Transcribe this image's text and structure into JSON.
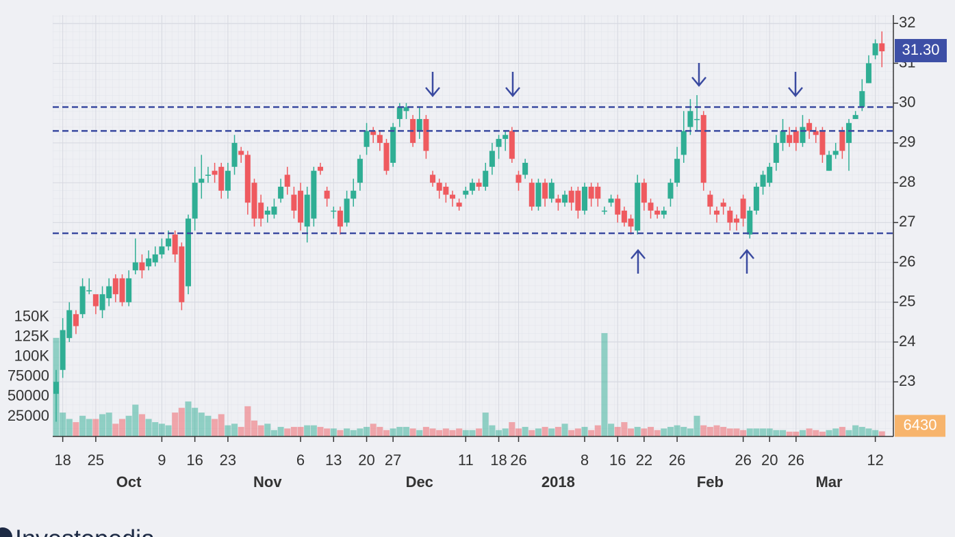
{
  "chart_data": {
    "type": "candlestick",
    "categories": [
      null,
      "18",
      null,
      null,
      null,
      null,
      "25",
      null,
      null,
      null,
      null,
      null,
      null,
      null,
      null,
      null,
      "9",
      null,
      null,
      null,
      null,
      "16",
      null,
      null,
      null,
      null,
      "23",
      null,
      null,
      null,
      null,
      null,
      null,
      null,
      null,
      null,
      null,
      "6",
      null,
      null,
      null,
      null,
      "13",
      null,
      null,
      null,
      null,
      "20",
      null,
      null,
      null,
      "27",
      null,
      null,
      null,
      null,
      null,
      null,
      null,
      null,
      null,
      null,
      "11",
      null,
      null,
      null,
      null,
      "18",
      null,
      null,
      "26",
      null,
      null,
      null,
      null,
      null,
      null,
      null,
      null,
      null,
      "8",
      null,
      null,
      null,
      null,
      "16",
      null,
      null,
      null,
      "22",
      null,
      null,
      null,
      null,
      "26",
      null,
      null,
      null,
      null,
      null,
      null,
      null,
      null,
      null,
      "26",
      null,
      null,
      null,
      "20",
      null,
      null,
      null,
      "26",
      null,
      null,
      null,
      null,
      null,
      null,
      null,
      null,
      null,
      null,
      null,
      "12",
      null
    ],
    "month_labels": [
      null,
      null,
      null,
      null,
      null,
      null,
      null,
      null,
      null,
      null,
      null,
      "Oct",
      null,
      null,
      null,
      null,
      null,
      null,
      null,
      null,
      null,
      null,
      null,
      null,
      null,
      null,
      null,
      null,
      null,
      null,
      null,
      null,
      "Nov",
      null,
      null,
      null,
      null,
      null,
      null,
      null,
      null,
      null,
      null,
      null,
      null,
      null,
      null,
      null,
      null,
      null,
      null,
      null,
      null,
      null,
      null,
      "Dec",
      null,
      null,
      null,
      null,
      null,
      null,
      null,
      null,
      null,
      null,
      null,
      null,
      null,
      null,
      null,
      null,
      null,
      null,
      null,
      null,
      "2018",
      null,
      null,
      null,
      null,
      null,
      null,
      null,
      null,
      null,
      null,
      null,
      null,
      null,
      null,
      null,
      null,
      null,
      null,
      null,
      null,
      null,
      null,
      "Feb",
      null,
      null,
      null,
      null,
      null,
      null,
      null,
      null,
      null,
      null,
      null,
      null,
      null,
      null,
      null,
      null,
      null,
      "Mar",
      null,
      null,
      null,
      null,
      null,
      null,
      null,
      null
    ],
    "open": [
      22.7,
      23.3,
      24.1,
      24.7,
      24.7,
      25.3,
      25.2,
      24.8,
      25.1,
      25.6,
      25.6,
      25.0,
      25.8,
      26.0,
      25.9,
      26.0,
      26.2,
      26.4,
      26.7,
      26.4,
      25.4,
      27.1,
      28.0,
      28.2,
      28.3,
      28.4,
      27.8,
      28.4,
      28.8,
      28.7,
      28.0,
      27.5,
      27.2,
      27.2,
      27.6,
      28.2,
      27.7,
      27.8,
      26.9,
      27.1,
      28.4,
      27.8,
      27.3,
      27.3,
      27.0,
      27.6,
      28.0,
      28.9,
      29.3,
      29.2,
      29.0,
      28.5,
      29.6,
      29.8,
      29.6,
      29.3,
      29.6,
      28.2,
      28.0,
      27.9,
      27.7,
      27.5,
      27.7,
      27.8,
      28.0,
      27.9,
      28.4,
      28.9,
      29.1,
      29.3,
      28.2,
      28.2,
      28.0,
      27.4,
      28.0,
      27.6,
      27.6,
      27.5,
      27.8,
      27.8,
      27.3,
      27.9,
      27.9,
      27.3,
      27.5,
      27.6,
      27.3,
      27.1,
      26.8,
      28.0,
      27.5,
      27.3,
      27.2,
      27.6,
      28.0,
      28.7,
      29.4,
      29.6,
      29.7,
      27.7,
      27.3,
      27.5,
      27.3,
      27.1,
      27.6,
      26.7,
      27.3,
      27.9,
      28.0,
      28.5,
      29.0,
      29.2,
      29.3,
      29.0,
      29.5,
      29.3,
      29.3,
      28.3,
      28.7,
      29.3,
      29.0,
      29.6,
      29.9,
      30.5,
      31.2,
      31.5
    ],
    "high": [
      23.3,
      24.6,
      25.0,
      24.8,
      25.6,
      25.6,
      25.1,
      25.4,
      25.6,
      25.7,
      25.7,
      25.8,
      26.6,
      26.2,
      26.3,
      26.4,
      26.6,
      26.8,
      26.8,
      26.5,
      27.2,
      28.4,
      28.7,
      28.4,
      28.5,
      28.5,
      28.5,
      29.2,
      28.9,
      28.8,
      28.1,
      27.7,
      27.4,
      27.6,
      28.1,
      28.4,
      27.9,
      28.0,
      27.9,
      28.4,
      28.5,
      27.9,
      27.4,
      27.4,
      27.8,
      28.1,
      28.7,
      29.5,
      29.4,
      29.3,
      29.1,
      29.5,
      30.0,
      30.0,
      29.7,
      29.9,
      29.7,
      28.3,
      28.1,
      28.0,
      27.8,
      27.6,
      27.9,
      28.1,
      28.1,
      28.5,
      29.0,
      29.2,
      29.3,
      29.4,
      28.3,
      28.6,
      28.1,
      28.1,
      28.1,
      28.1,
      27.7,
      27.8,
      27.9,
      27.9,
      28.0,
      28.0,
      28.0,
      27.4,
      27.7,
      27.7,
      27.4,
      27.2,
      28.2,
      28.1,
      27.6,
      27.4,
      27.4,
      28.1,
      28.9,
      29.8,
      30.1,
      30.2,
      29.8,
      27.8,
      27.4,
      27.6,
      27.4,
      27.2,
      27.7,
      27.4,
      28.0,
      28.3,
      28.5,
      29.2,
      29.6,
      29.4,
      29.4,
      29.7,
      29.6,
      29.4,
      29.4,
      28.8,
      29.0,
      29.4,
      29.6,
      29.8,
      30.6,
      31.2,
      31.6,
      31.8
    ],
    "low": [
      22.0,
      23.1,
      24.0,
      24.2,
      24.6,
      25.2,
      24.7,
      24.6,
      24.9,
      25.0,
      24.9,
      24.9,
      25.7,
      25.6,
      25.8,
      25.9,
      26.1,
      26.3,
      26.0,
      24.8,
      25.2,
      26.8,
      27.6,
      28.0,
      28.0,
      27.6,
      27.6,
      28.2,
      28.5,
      27.2,
      26.9,
      26.9,
      27.0,
      27.1,
      27.5,
      27.7,
      27.1,
      26.8,
      26.5,
      26.9,
      28.2,
      27.4,
      27.1,
      26.7,
      26.9,
      27.4,
      27.8,
      28.7,
      29.0,
      28.8,
      28.2,
      28.4,
      29.4,
      29.6,
      28.9,
      29.1,
      28.6,
      27.9,
      27.6,
      27.5,
      27.4,
      27.3,
      27.6,
      27.7,
      27.8,
      27.8,
      28.2,
      28.6,
      28.8,
      28.5,
      27.8,
      28.1,
      27.3,
      27.3,
      27.4,
      27.5,
      27.3,
      27.4,
      27.3,
      27.1,
      27.2,
      27.4,
      27.4,
      27.2,
      27.4,
      27.0,
      26.9,
      26.7,
      26.7,
      27.3,
      27.1,
      27.1,
      27.1,
      27.4,
      27.9,
      28.5,
      29.2,
      29.3,
      27.8,
      27.2,
      27.0,
      27.2,
      26.8,
      26.8,
      26.9,
      26.6,
      27.2,
      27.7,
      27.9,
      28.3,
      28.8,
      28.9,
      28.8,
      28.9,
      29.1,
      29.0,
      28.5,
      28.3,
      28.6,
      28.6,
      28.3,
      29.6,
      29.8,
      30.5,
      31.1,
      30.9
    ],
    "close": [
      23.0,
      24.3,
      24.8,
      24.4,
      25.4,
      25.3,
      24.9,
      25.2,
      25.4,
      25.2,
      25.0,
      25.6,
      26.0,
      25.8,
      26.1,
      26.2,
      26.4,
      26.6,
      26.2,
      25.0,
      27.1,
      28.0,
      28.1,
      28.2,
      28.2,
      27.8,
      28.3,
      29.0,
      28.7,
      27.5,
      27.1,
      27.1,
      27.3,
      27.4,
      27.9,
      27.9,
      27.3,
      27.0,
      27.7,
      28.3,
      28.3,
      27.6,
      27.3,
      26.9,
      27.6,
      27.8,
      28.6,
      29.3,
      29.2,
      29.0,
      28.3,
      29.4,
      29.9,
      29.9,
      29.0,
      29.6,
      28.8,
      28.0,
      27.8,
      27.7,
      27.6,
      27.4,
      27.8,
      28.0,
      27.9,
      28.3,
      28.8,
      29.1,
      29.2,
      28.6,
      28.0,
      28.5,
      27.4,
      28.0,
      27.6,
      28.0,
      27.5,
      27.7,
      27.5,
      27.3,
      27.9,
      27.6,
      27.6,
      27.3,
      27.6,
      27.2,
      27.0,
      26.9,
      28.0,
      27.5,
      27.3,
      27.2,
      27.3,
      28.0,
      28.6,
      29.3,
      29.8,
      29.6,
      28.0,
      27.4,
      27.2,
      27.4,
      27.0,
      27.0,
      27.1,
      27.3,
      27.9,
      28.2,
      28.4,
      29.0,
      29.3,
      29.0,
      29.0,
      29.4,
      29.3,
      29.2,
      28.7,
      28.7,
      28.8,
      28.8,
      29.5,
      29.7,
      30.3,
      31.0,
      31.5,
      31.3
    ],
    "volume": [
      124000,
      30000,
      22000,
      18000,
      26000,
      22000,
      22000,
      28000,
      30000,
      16000,
      22000,
      26000,
      40000,
      28000,
      22000,
      18000,
      16000,
      14000,
      30000,
      36000,
      44000,
      36000,
      30000,
      26000,
      22000,
      28000,
      14000,
      16000,
      12000,
      38000,
      20000,
      14000,
      16000,
      8000,
      12000,
      10000,
      12000,
      12000,
      14000,
      14000,
      12000,
      10000,
      10000,
      8000,
      10000,
      8000,
      10000,
      12000,
      16000,
      12000,
      8000,
      10000,
      12000,
      12000,
      10000,
      8000,
      12000,
      10000,
      8000,
      10000,
      8000,
      10000,
      8000,
      8000,
      10000,
      30000,
      14000,
      8000,
      10000,
      18000,
      10000,
      12000,
      8000,
      10000,
      12000,
      10000,
      12000,
      16000,
      8000,
      10000,
      12000,
      8000,
      14000,
      130000,
      16000,
      12000,
      18000,
      10000,
      12000,
      10000,
      12000,
      8000,
      10000,
      12000,
      14000,
      12000,
      10000,
      26000,
      14000,
      12000,
      14000,
      12000,
      10000,
      10000,
      8000,
      10000,
      10000,
      10000,
      10000,
      8000,
      8000,
      6000,
      6000,
      8000,
      10000,
      8000,
      6000,
      8000,
      10000,
      12000,
      8000,
      14000,
      12000,
      10000,
      8000,
      6430
    ],
    "up_color": "#2fae94",
    "down_color": "#ef5a5f",
    "ylim": [
      21.63,
      32.21
    ],
    "yticks": [
      23,
      24,
      25,
      26,
      27,
      28,
      29,
      30,
      31,
      32
    ],
    "vlim": [
      0,
      530000
    ],
    "vticks": [
      {
        "value": 150000,
        "label": "150K"
      },
      {
        "value": 125000,
        "label": "125K"
      },
      {
        "value": 100000,
        "label": "100K"
      },
      75000,
      50000,
      25000
    ],
    "levels": [
      29.9,
      29.3,
      26.73
    ],
    "level_color": "#3a4aa0",
    "last_price": {
      "value": 31.3,
      "label": "31.30"
    },
    "last_volume": 6430,
    "grid": true,
    "watermark": "Investopedia"
  }
}
